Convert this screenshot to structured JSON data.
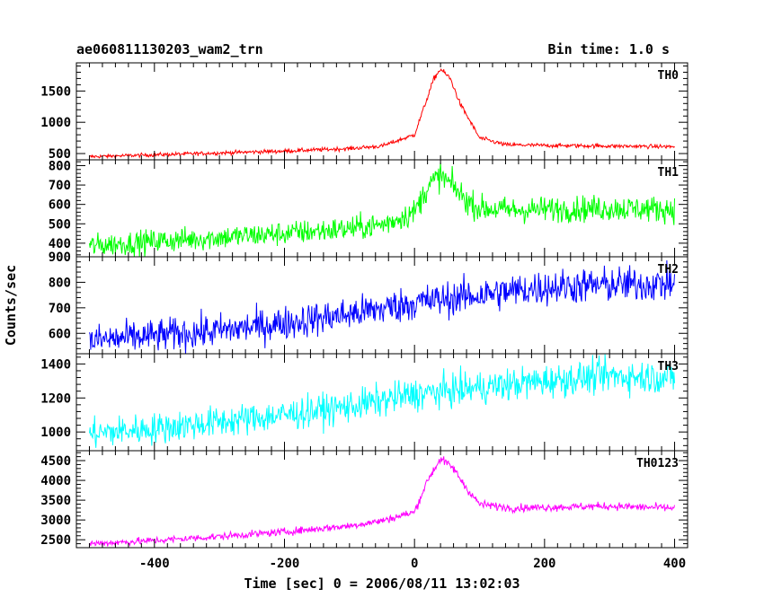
{
  "chart_data": {
    "type": "line",
    "title": "ae060811130203_wam2_trn",
    "subtitle": "Bin time: 1.0 s",
    "xlabel": "Time [sec] 0 = 2006/08/11 13:02:03",
    "ylabel": "Counts/sec",
    "xlim": [
      -520,
      420
    ],
    "xticks": [
      -400,
      -200,
      0,
      200,
      400
    ],
    "grid": false,
    "panels": [
      {
        "name": "TH0",
        "color": "#ff0000",
        "ylim": [
          400,
          1950
        ],
        "yticks": [
          500,
          1000,
          1500
        ],
        "noise": 15,
        "series": {
          "x": [
            -500,
            -400,
            -300,
            -200,
            -100,
            -50,
            0,
            20,
            30,
            40,
            55,
            70,
            100,
            140,
            200,
            300,
            400
          ],
          "y": [
            450,
            480,
            510,
            540,
            580,
            620,
            800,
            1400,
            1700,
            1850,
            1700,
            1300,
            750,
            640,
            630,
            620,
            610
          ]
        }
      },
      {
        "name": "TH1",
        "color": "#00ff00",
        "ylim": [
          330,
          830
        ],
        "yticks": [
          400,
          500,
          600,
          700,
          800
        ],
        "noise": 30,
        "series": {
          "x": [
            -500,
            -400,
            -300,
            -200,
            -100,
            -50,
            0,
            20,
            40,
            60,
            80,
            100,
            150,
            200,
            300,
            400
          ],
          "y": [
            385,
            410,
            430,
            450,
            475,
            495,
            560,
            690,
            750,
            690,
            620,
            580,
            570,
            575,
            580,
            575
          ]
        }
      },
      {
        "name": "TH2",
        "color": "#0000ff",
        "ylim": [
          520,
          900
        ],
        "yticks": [
          600,
          700,
          800,
          900
        ],
        "noise": 32,
        "series": {
          "x": [
            -500,
            -400,
            -300,
            -200,
            -100,
            0,
            100,
            200,
            300,
            400
          ],
          "y": [
            570,
            590,
            610,
            640,
            675,
            720,
            750,
            780,
            790,
            795
          ]
        }
      },
      {
        "name": "TH3",
        "color": "#00ffff",
        "ylim": [
          890,
          1460
        ],
        "yticks": [
          1000,
          1200,
          1400
        ],
        "noise": 45,
        "series": {
          "x": [
            -500,
            -400,
            -300,
            -200,
            -100,
            0,
            100,
            200,
            300,
            400
          ],
          "y": [
            990,
            1020,
            1060,
            1100,
            1150,
            1220,
            1260,
            1300,
            1330,
            1320
          ]
        }
      },
      {
        "name": "TH0123",
        "color": "#ff00ff",
        "ylim": [
          2300,
          4750
        ],
        "yticks": [
          2500,
          3000,
          3500,
          4000,
          4500
        ],
        "noise": 45,
        "series": {
          "x": [
            -500,
            -400,
            -300,
            -200,
            -100,
            -50,
            0,
            20,
            40,
            60,
            80,
            100,
            150,
            200,
            300,
            400
          ],
          "y": [
            2400,
            2480,
            2580,
            2700,
            2850,
            2980,
            3200,
            4000,
            4550,
            4300,
            3800,
            3400,
            3300,
            3320,
            3350,
            3300
          ]
        }
      }
    ]
  }
}
